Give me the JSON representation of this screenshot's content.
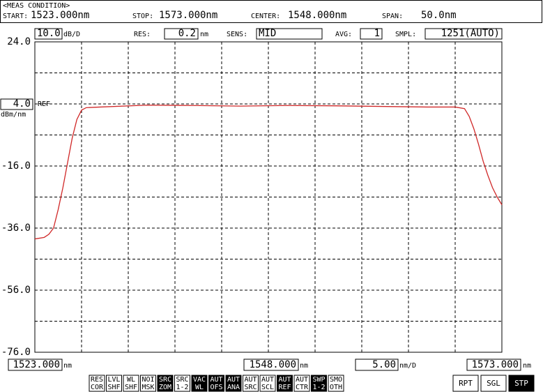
{
  "header": {
    "title": "<MEAS CONDITION>",
    "start_label": "START:",
    "start": "1523.000nm",
    "stop_label": "STOP:",
    "stop": "1573.000nm",
    "center_label": "CENTER:",
    "center": "1548.000nm",
    "span_label": "SPAN:",
    "span": "50.0nm"
  },
  "settings": {
    "y_scale_unit": "dB/D",
    "res_label": "RES:",
    "res": "0.2",
    "res_unit": "nm",
    "sens_label": "SENS:",
    "sens": "MID",
    "avg_label": "AVG:",
    "avg": "1",
    "smpl_label": "SMPL:",
    "smpl": "1251(AUTO)"
  },
  "chart_data": {
    "type": "line",
    "x": [
      1523.0,
      1524.0,
      1524.5,
      1525.0,
      1525.5,
      1526.0,
      1526.5,
      1527.0,
      1527.5,
      1528.0,
      1528.5,
      1530,
      1535,
      1540,
      1545,
      1550,
      1555,
      1560,
      1565,
      1568,
      1569.0,
      1569.5,
      1570.0,
      1570.5,
      1571.0,
      1571.5,
      1572.0,
      1572.5,
      1573.0
    ],
    "series": [
      {
        "color": "#d02828",
        "values": [
          -39.5,
          -39.0,
          -38.0,
          -36.0,
          -30.0,
          -23.0,
          -15.0,
          -7.0,
          -1.0,
          2.0,
          2.8,
          3.0,
          3.6,
          3.5,
          3.3,
          3.5,
          3.4,
          3.2,
          3.0,
          3.0,
          2.5,
          0.0,
          -4.0,
          -9.0,
          -14.5,
          -19.0,
          -23.0,
          -26.0,
          -28.5
        ]
      }
    ],
    "xlim": [
      1523,
      1573
    ],
    "ylim": [
      -76,
      24
    ],
    "xticks": [
      {
        "value": 1523,
        "label": "1523.000"
      },
      {
        "value": 1548,
        "label": "1548.000"
      },
      {
        "value": 1573,
        "label": "1573.000"
      }
    ],
    "x_unit": "nm",
    "yticks": [
      {
        "value": 24,
        "label": "24.0"
      },
      {
        "value": -16,
        "label": "-16.0"
      },
      {
        "value": -36,
        "label": "-36.0"
      },
      {
        "value": -56,
        "label": "-56.0"
      },
      {
        "value": -76,
        "label": "-76.0"
      }
    ],
    "ref_level": {
      "value": 4,
      "label": "4.0"
    },
    "ref_text": "REF",
    "y_unit": "dBm/nm",
    "y_per_div": {
      "value": 10,
      "label": "10.0"
    },
    "x_per_div": {
      "value": 5,
      "label": "5.00"
    },
    "x_per_div_unit": "nm/D",
    "grid": true
  },
  "buttons": [
    {
      "top": "RES",
      "bottom": "COR",
      "active": false
    },
    {
      "top": "LVL",
      "bottom": "SHF",
      "active": false
    },
    {
      "top": "WL",
      "bottom": "SHF",
      "active": false
    },
    {
      "top": "NOI",
      "bottom": "MSK",
      "active": false
    },
    {
      "top": "SRC",
      "bottom": "ZOM",
      "active": true
    },
    {
      "top": "SRC",
      "bottom": "1-2",
      "active": false
    },
    {
      "top": "VAC",
      "bottom": "WL",
      "active": true
    },
    {
      "top": "AUT",
      "bottom": "OFS",
      "active": true
    },
    {
      "top": "AUT",
      "bottom": "ANA",
      "active": true
    },
    {
      "top": "AUT",
      "bottom": "SRC",
      "active": false
    },
    {
      "top": "AUT",
      "bottom": "SCL",
      "active": false
    },
    {
      "top": "AUT",
      "bottom": "REF",
      "active": true
    },
    {
      "top": "AUT",
      "bottom": "CTR",
      "active": false
    },
    {
      "top": "SWP",
      "bottom": "1-2",
      "active": true
    },
    {
      "top": "SMO",
      "bottom": "OTH",
      "active": false
    }
  ],
  "sweep_buttons": [
    {
      "label": "RPT",
      "active": false
    },
    {
      "label": "SGL",
      "active": false
    },
    {
      "label": "STP",
      "active": true
    }
  ]
}
